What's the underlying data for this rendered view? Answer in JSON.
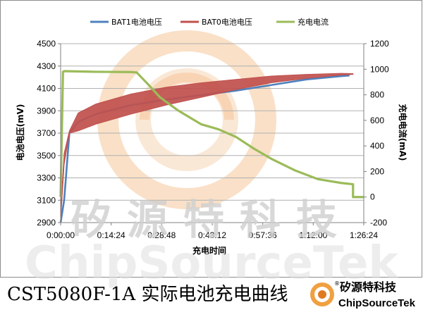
{
  "chart_data": {
    "type": "line",
    "xlabel": "充电时间",
    "ylabel_left": "电池电压(mV)",
    "ylabel_right": "充电电流(mA)",
    "x_ticks": [
      "0:00:00",
      "0:14:24",
      "0:28:48",
      "0:43:12",
      "0:57:36",
      "1:12:00",
      "1:26:24"
    ],
    "x_range_seconds": [
      0,
      5184
    ],
    "y_left_range": [
      2900,
      4500
    ],
    "y_left_ticks": [
      "2900",
      "3100",
      "3300",
      "3500",
      "3700",
      "3900",
      "4100",
      "4300",
      "4500"
    ],
    "y_right_range": [
      -200,
      1200
    ],
    "y_right_ticks": [
      "-200",
      "0",
      "200",
      "400",
      "600",
      "800",
      "1000",
      "1200"
    ],
    "legend_position": "top",
    "grid": "horizontal",
    "series": [
      {
        "name": "BAT1电池电压",
        "axis": "left",
        "color": "#4F81BD",
        "points": [
          [
            0,
            2900
          ],
          [
            60,
            3100
          ],
          [
            150,
            3700
          ],
          [
            300,
            3800
          ],
          [
            600,
            3870
          ],
          [
            1200,
            3950
          ],
          [
            1800,
            4000
          ],
          [
            2400,
            4040
          ],
          [
            3000,
            4080
          ],
          [
            3600,
            4130
          ],
          [
            4200,
            4180
          ],
          [
            4800,
            4210
          ],
          [
            4940,
            4215
          ]
        ]
      },
      {
        "name": "BAT0电池电压",
        "axis": "left",
        "color": "#C0504D",
        "band": true,
        "upper": [
          [
            0,
            3000
          ],
          [
            60,
            3520
          ],
          [
            150,
            3720
          ],
          [
            300,
            3880
          ],
          [
            600,
            3960
          ],
          [
            1200,
            4050
          ],
          [
            1800,
            4110
          ],
          [
            2400,
            4150
          ],
          [
            3000,
            4180
          ],
          [
            3600,
            4210
          ],
          [
            4200,
            4225
          ],
          [
            4800,
            4235
          ],
          [
            5000,
            4232
          ]
        ],
        "lower": [
          [
            0,
            2920
          ],
          [
            60,
            3420
          ],
          [
            150,
            3700
          ],
          [
            300,
            3720
          ],
          [
            600,
            3780
          ],
          [
            1200,
            3870
          ],
          [
            1800,
            3950
          ],
          [
            2400,
            4020
          ],
          [
            3000,
            4090
          ],
          [
            3600,
            4150
          ],
          [
            4200,
            4190
          ],
          [
            4800,
            4220
          ],
          [
            5000,
            4225
          ]
        ]
      },
      {
        "name": "充电电流",
        "axis": "right",
        "color": "#9BBB59",
        "points": [
          [
            0,
            0
          ],
          [
            40,
            980
          ],
          [
            60,
            985
          ],
          [
            600,
            980
          ],
          [
            1200,
            978
          ],
          [
            1300,
            975
          ],
          [
            1500,
            880
          ],
          [
            1700,
            780
          ],
          [
            2000,
            680
          ],
          [
            2400,
            570
          ],
          [
            2700,
            530
          ],
          [
            3000,
            470
          ],
          [
            3300,
            380
          ],
          [
            3600,
            300
          ],
          [
            4000,
            210
          ],
          [
            4400,
            140
          ],
          [
            4800,
            110
          ],
          [
            5000,
            100
          ],
          [
            5000,
            0
          ],
          [
            5184,
            0
          ]
        ]
      }
    ]
  },
  "caption": "CST5080F-1A 实际电池充电曲线",
  "logo": {
    "name_cn": "矽源特科技",
    "name_en": "ChipSourceTek",
    "registered_mark": "®"
  },
  "watermark": {
    "name_cn": "矽源特科技",
    "name_en": "ChipSourceTek"
  }
}
